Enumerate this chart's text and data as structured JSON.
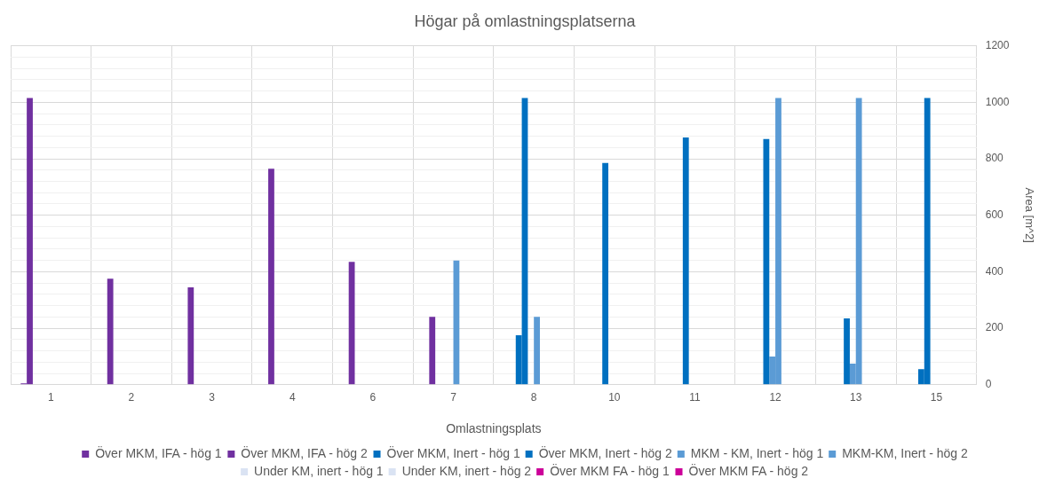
{
  "chart_data": {
    "type": "bar",
    "title": "Högar på omlastningsplatserna",
    "xlabel": "Omlastningsplats",
    "ylabel": "Area [m^2]",
    "categories": [
      "1",
      "2",
      "3",
      "4",
      "6",
      "7",
      "8",
      "10",
      "11",
      "12",
      "13",
      "15"
    ],
    "series": [
      {
        "name": "Över MKM, IFA - hög 1",
        "color": "#7030a0",
        "values": [
          5,
          null,
          null,
          null,
          null,
          null,
          null,
          null,
          null,
          null,
          null,
          null
        ]
      },
      {
        "name": "Över MKM, IFA - hög 2",
        "color": "#7030a0",
        "values": [
          1015,
          375,
          345,
          765,
          435,
          240,
          null,
          null,
          null,
          null,
          null,
          null
        ]
      },
      {
        "name": "Över MKM, Inert - hög 1",
        "color": "#0070c0",
        "values": [
          null,
          null,
          null,
          null,
          null,
          null,
          175,
          null,
          null,
          null,
          null,
          55
        ]
      },
      {
        "name": "Över MKM, Inert - hög 2",
        "color": "#0070c0",
        "values": [
          null,
          null,
          null,
          null,
          null,
          null,
          1015,
          785,
          875,
          870,
          235,
          1015
        ]
      },
      {
        "name": "MKM - KM, Inert - hög 1",
        "color": "#5b9bd5",
        "values": [
          null,
          null,
          null,
          null,
          null,
          null,
          null,
          null,
          null,
          100,
          75,
          null
        ]
      },
      {
        "name": "MKM-KM, Inert - hög 2",
        "color": "#5b9bd5",
        "values": [
          null,
          null,
          null,
          null,
          null,
          440,
          240,
          null,
          null,
          1015,
          1015,
          null
        ]
      },
      {
        "name": "Under KM, inert - hög 1",
        "color": "#dae3f3",
        "values": [
          null,
          null,
          null,
          null,
          null,
          null,
          null,
          null,
          null,
          null,
          null,
          null
        ]
      },
      {
        "name": "Under KM, inert - hög 2",
        "color": "#dae3f3",
        "values": [
          null,
          null,
          null,
          null,
          null,
          null,
          null,
          null,
          null,
          null,
          null,
          null
        ]
      },
      {
        "name": "Över MKM FA - hög 1",
        "color": "#cc0099",
        "values": [
          null,
          null,
          null,
          null,
          null,
          null,
          null,
          null,
          null,
          null,
          null,
          null
        ]
      },
      {
        "name": "Över MKM FA - hög 2",
        "color": "#cc0099",
        "values": [
          null,
          null,
          null,
          null,
          null,
          null,
          null,
          null,
          null,
          null,
          null,
          null
        ]
      }
    ],
    "ylim": [
      0,
      1200
    ],
    "yticks": [
      0,
      {
        "value": 40,
        "label": null
      },
      {
        "value": 80,
        "label": null
      },
      {
        "value": 120,
        "label": null
      },
      {
        "value": 160,
        "label": null
      },
      200,
      {
        "value": 240,
        "label": null
      },
      {
        "value": 280,
        "label": null
      },
      {
        "value": 320,
        "label": null
      },
      {
        "value": 360,
        "label": null
      },
      400,
      {
        "value": 440,
        "label": null
      },
      {
        "value": 480,
        "label": null
      },
      {
        "value": 520,
        "label": null
      },
      {
        "value": 560,
        "label": null
      },
      600,
      {
        "value": 640,
        "label": null
      },
      {
        "value": 680,
        "label": null
      },
      {
        "value": 720,
        "label": null
      },
      {
        "value": 760,
        "label": null
      },
      800,
      {
        "value": 840,
        "label": null
      },
      {
        "value": 880,
        "label": null
      },
      {
        "value": 920,
        "label": null
      },
      {
        "value": 960,
        "label": null
      },
      1000,
      {
        "value": 1040,
        "label": null
      },
      {
        "value": 1080,
        "label": null
      },
      {
        "value": 1120,
        "label": null
      },
      {
        "value": 1160,
        "label": null
      },
      1200
    ],
    "grid": true,
    "legend": "bottom"
  }
}
